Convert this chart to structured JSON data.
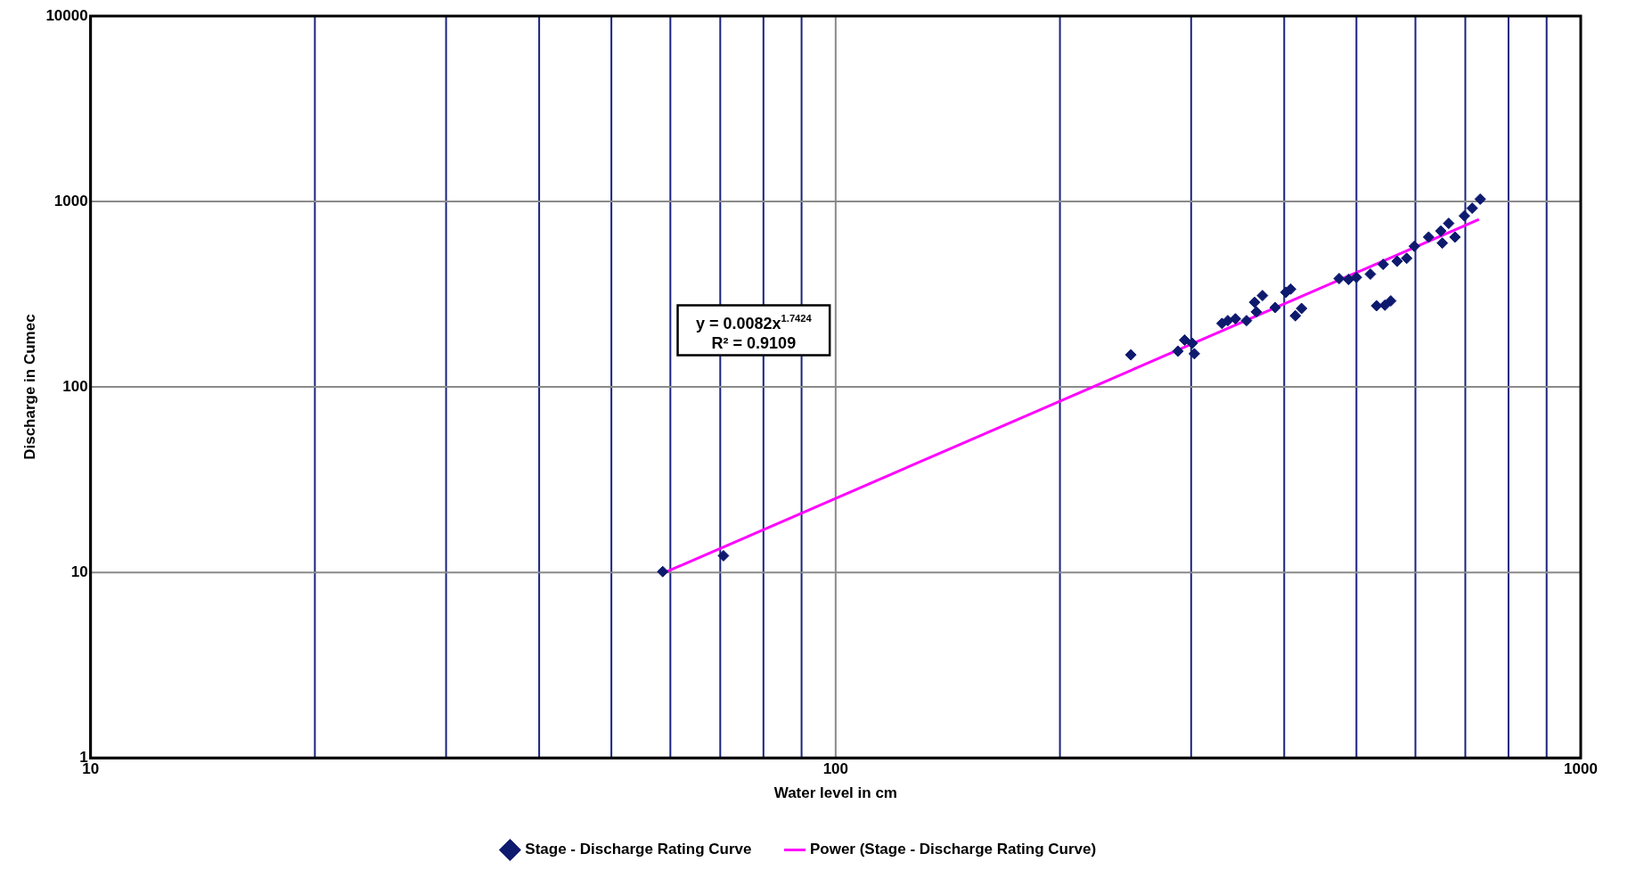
{
  "chart_data": {
    "type": "scatter",
    "xlabel": "Water level in cm",
    "ylabel": "Discharge in Cumec",
    "log": "xy",
    "grid": true,
    "legend": "bottom",
    "xlim": [
      10,
      1000
    ],
    "ylim": [
      1,
      10000
    ],
    "xticks": [
      10,
      {
        "value": 20,
        "label": null
      },
      {
        "value": 30,
        "label": null
      },
      {
        "value": 40,
        "label": null
      },
      {
        "value": 50,
        "label": null
      },
      {
        "value": 60,
        "label": null
      },
      {
        "value": 70,
        "label": null
      },
      {
        "value": 80,
        "label": null
      },
      {
        "value": 90,
        "label": null
      },
      100,
      {
        "value": 200,
        "label": null
      },
      {
        "value": 300,
        "label": null
      },
      {
        "value": 400,
        "label": null
      },
      {
        "value": 500,
        "label": null
      },
      {
        "value": 600,
        "label": null
      },
      {
        "value": 700,
        "label": null
      },
      {
        "value": 800,
        "label": null
      },
      {
        "value": 900,
        "label": null
      },
      1000
    ],
    "yticks": [
      1,
      10,
      100,
      1000,
      10000
    ],
    "annotations": [
      "y = 0.0082x$^{1.7424}$",
      "R² = 0.9109"
    ],
    "series": [
      {
        "name": "Stage - Discharge Rating Curve",
        "type": "scatter",
        "marker": "diamond",
        "color": "#0d1a6e",
        "x": [
          58.6,
          70.7,
          249,
          288,
          294,
          301,
          303,
          330,
          336,
          344,
          356,
          367,
          365,
          374,
          389,
          402,
          408,
          414,
          422,
          474,
          488,
          500,
          522,
          532,
          546,
          556,
          543,
          567,
          584,
          598,
          625,
          649,
          665,
          652,
          678,
          698,
          715,
          733
        ],
        "values": [
          10.1,
          12.3,
          149,
          156,
          179,
          172,
          151,
          220,
          228,
          233,
          228,
          254,
          286,
          311,
          268,
          324,
          337,
          242,
          265,
          384,
          380,
          390,
          406,
          274,
          276,
          291,
          458,
          476,
          494,
          574,
          643,
          693,
          762,
          597,
          643,
          837,
          920,
          1030
        ]
      },
      {
        "name": "Power (Stage - Discharge Rating Curve)",
        "type": "line",
        "marker": "none",
        "line_style": "solid",
        "color": "#ff00ff",
        "x": [
          59,
          730
        ],
        "values": [
          10,
          800
        ]
      }
    ]
  }
}
